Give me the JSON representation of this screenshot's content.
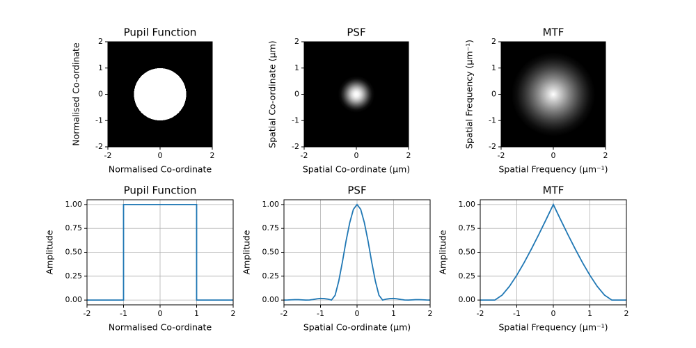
{
  "chart_data": [
    {
      "type": "image",
      "title": "Pupil Function",
      "xlabel": "Normalised Co-ordinate",
      "ylabel": "Normalised Co-ordinate",
      "cmap": "gray",
      "r": [
        0,
        1,
        1,
        2
      ],
      "values": [
        1,
        1,
        0,
        0
      ],
      "xlim": [
        -2,
        2
      ],
      "ylim": [
        -2,
        2
      ],
      "xticks": [
        -2,
        0,
        2
      ],
      "yticks": [
        -2,
        -1,
        0,
        1,
        2
      ],
      "grid": false
    },
    {
      "type": "image",
      "title": "PSF",
      "xlabel": "Spatial Co-ordinate (μm)",
      "ylabel": "Spatial Co-ordinate (μm)",
      "cmap": "gray",
      "r": [
        0,
        0.1,
        0.2,
        0.3,
        0.4,
        0.5,
        0.6,
        0.7,
        2
      ],
      "values": [
        1,
        0.95,
        0.81,
        0.62,
        0.4,
        0.2,
        0.05,
        0,
        0
      ],
      "xlim": [
        -2,
        2
      ],
      "ylim": [
        -2,
        2
      ],
      "xticks": [
        -2,
        0,
        2
      ],
      "yticks": [
        -2,
        -1,
        0,
        1,
        2
      ],
      "grid": false
    },
    {
      "type": "image",
      "title": "MTF",
      "xlabel": "Spatial Frequency (μm⁻¹)",
      "ylabel": "Spatial Frequency (μm⁻¹)",
      "cmap": "gray",
      "r": [
        0,
        0.2,
        0.4,
        0.6,
        0.8,
        1.0,
        1.2,
        1.4,
        1.6,
        2
      ],
      "values": [
        1,
        0.841,
        0.685,
        0.534,
        0.391,
        0.26,
        0.144,
        0.052,
        0,
        0
      ],
      "xlim": [
        -2,
        2
      ],
      "ylim": [
        -2,
        2
      ],
      "xticks": [
        -2,
        0,
        2
      ],
      "yticks": [
        -2,
        -1,
        0,
        1,
        2
      ],
      "grid": false
    },
    {
      "type": "line",
      "title": "Pupil Function",
      "xlabel": "Normalised Co-ordinate",
      "ylabel": "Amplitude",
      "color": "#1f77b4",
      "x": [
        -2,
        -1,
        -1,
        1,
        1,
        2
      ],
      "values": [
        0,
        0,
        1,
        1,
        0,
        0
      ],
      "xlim": [
        -2,
        2
      ],
      "ylim": [
        -0.05,
        1.05
      ],
      "xticks": [
        -2,
        -1,
        0,
        1,
        2
      ],
      "yticks": [
        {
          "value": 0,
          "label": "0.00"
        },
        {
          "value": 0.25,
          "label": "0.25"
        },
        {
          "value": 0.5,
          "label": "0.50"
        },
        {
          "value": 0.75,
          "label": "0.75"
        },
        {
          "value": 1,
          "label": "1.00"
        }
      ],
      "grid": true
    },
    {
      "type": "line",
      "title": "PSF",
      "xlabel": "Spatial Co-ordinate (μm)",
      "ylabel": "Amplitude",
      "color": "#1f77b4",
      "x": [
        -2,
        -1.9,
        -1.8,
        -1.7,
        -1.6,
        -1.5,
        -1.4,
        -1.3,
        -1.2,
        -1.1,
        -1,
        -0.9,
        -0.8,
        -0.7,
        -0.6,
        -0.5,
        -0.4,
        -0.3,
        -0.2,
        -0.1,
        0,
        0.1,
        0.2,
        0.3,
        0.4,
        0.5,
        0.6,
        0.7,
        0.8,
        0.9,
        1,
        1.1,
        1.2,
        1.3,
        1.4,
        1.5,
        1.6,
        1.7,
        1.8,
        1.9,
        2
      ],
      "values": [
        0,
        0.001,
        0.003,
        0.004,
        0.004,
        0.002,
        0,
        0.001,
        0.006,
        0.013,
        0.017,
        0.015,
        0.01,
        0,
        0.05,
        0.2,
        0.4,
        0.62,
        0.81,
        0.95,
        1,
        0.95,
        0.81,
        0.62,
        0.4,
        0.2,
        0.05,
        0,
        0.01,
        0.015,
        0.017,
        0.013,
        0.006,
        0.001,
        0,
        0.002,
        0.004,
        0.004,
        0.003,
        0.001,
        0
      ],
      "xlim": [
        -2,
        2
      ],
      "ylim": [
        -0.05,
        1.05
      ],
      "xticks": [
        -2,
        -1,
        0,
        1,
        2
      ],
      "yticks": [
        {
          "value": 0,
          "label": "0.00"
        },
        {
          "value": 0.25,
          "label": "0.25"
        },
        {
          "value": 0.5,
          "label": "0.50"
        },
        {
          "value": 0.75,
          "label": "0.75"
        },
        {
          "value": 1,
          "label": "1.00"
        }
      ],
      "grid": true
    },
    {
      "type": "line",
      "title": "MTF",
      "xlabel": "Spatial Frequency (μm⁻¹)",
      "ylabel": "Amplitude",
      "color": "#1f77b4",
      "x": [
        -2,
        -1.8,
        -1.6,
        -1.4,
        -1.2,
        -1,
        -0.8,
        -0.6,
        -0.4,
        -0.2,
        0,
        0.2,
        0.4,
        0.6,
        0.8,
        1,
        1.2,
        1.4,
        1.6,
        1.8,
        2
      ],
      "values": [
        0,
        0,
        0,
        0.052,
        0.144,
        0.26,
        0.391,
        0.534,
        0.685,
        0.841,
        1,
        0.841,
        0.685,
        0.534,
        0.391,
        0.26,
        0.144,
        0.052,
        0,
        0,
        0
      ],
      "xlim": [
        -2,
        2
      ],
      "ylim": [
        -0.05,
        1.05
      ],
      "xticks": [
        -2,
        -1,
        0,
        1,
        2
      ],
      "yticks": [
        {
          "value": 0,
          "label": "0.00"
        },
        {
          "value": 0.25,
          "label": "0.25"
        },
        {
          "value": 0.5,
          "label": "0.50"
        },
        {
          "value": 0.75,
          "label": "0.75"
        },
        {
          "value": 1,
          "label": "1.00"
        }
      ],
      "grid": true
    }
  ]
}
